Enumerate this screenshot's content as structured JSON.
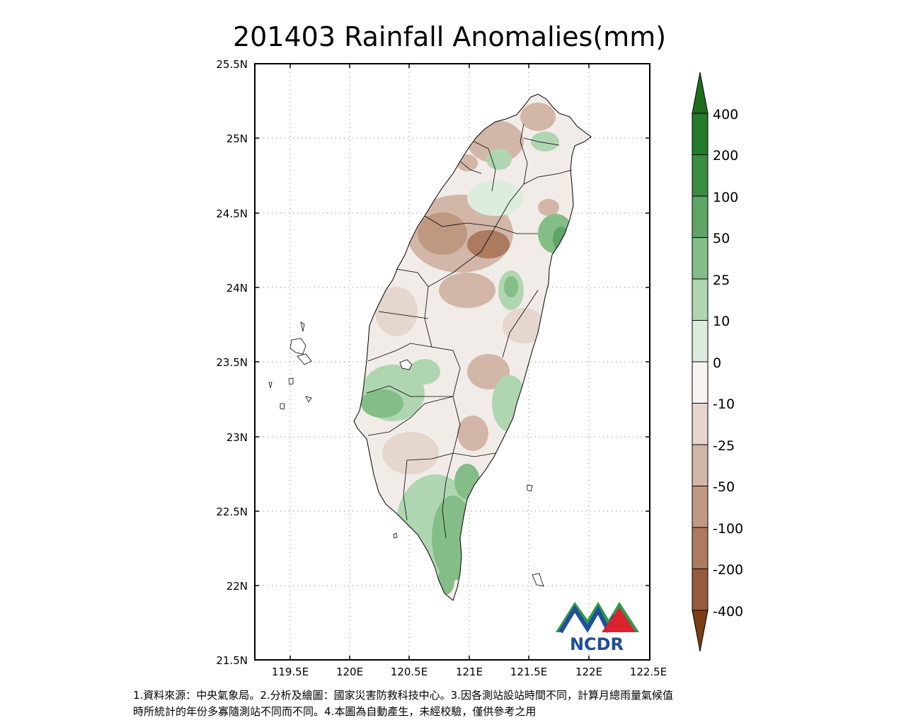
{
  "title": "201403 Rainfall Anomalies(mm)",
  "map": {
    "lat_ticks": [
      "25.5N",
      "25N",
      "24.5N",
      "24N",
      "23.5N",
      "23N",
      "22.5N",
      "22N",
      "21.5N"
    ],
    "lon_ticks": [
      "119.5E",
      "120E",
      "120.5E",
      "121E",
      "121.5E",
      "122E",
      "122.5E"
    ],
    "lat_range": [
      21.5,
      25.5
    ],
    "lon_range": [
      119.2,
      122.5
    ],
    "gridlines": "dotted"
  },
  "colorbar": {
    "labels": [
      "400",
      "200",
      "100",
      "50",
      "25",
      "10",
      "0",
      "-10",
      "-25",
      "-50",
      "-100",
      "-200",
      "-400"
    ],
    "colors": [
      "#237a2a",
      "#3a8c43",
      "#5ea465",
      "#84bd88",
      "#afd6b1",
      "#dcede0",
      "#f7f3f1",
      "#e5d6ce",
      "#d2b7a8",
      "#bf9882",
      "#ab7a5f",
      "#965a3c",
      "#85461f"
    ],
    "top_arrow_color": "#1e6e1e",
    "bottom_arrow_color": "#7a3f14"
  },
  "logo": {
    "text": "NCDR"
  },
  "notes": {
    "line1": "1.資料來源：中央氣象局。2.分析及繪圖：國家災害防救科技中心。3.因各測站設站時間不同，計算月總雨量氣候值",
    "line2": "時所統計的年份多寡隨測站不同而不同。4.本圖為自動產生，未經校驗，僅供參考之用"
  }
}
